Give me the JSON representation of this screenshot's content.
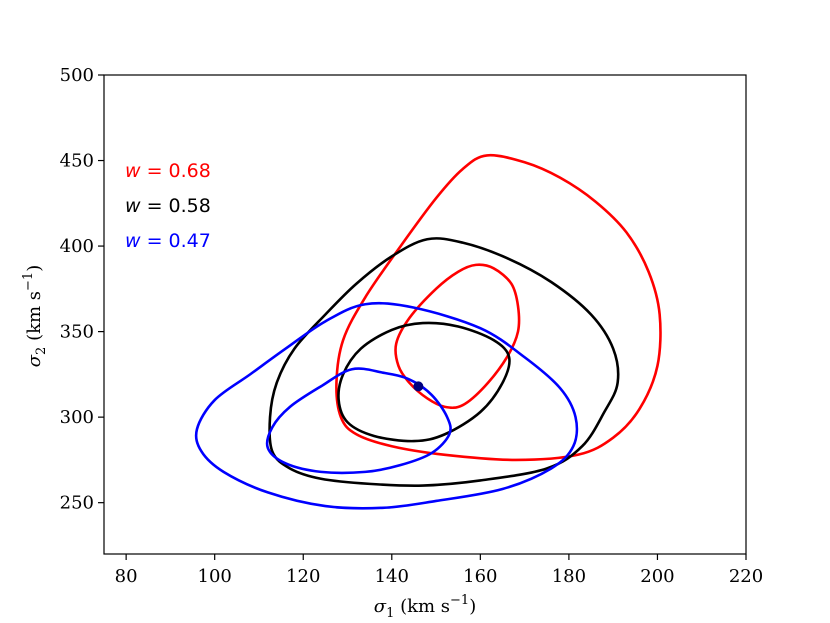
{
  "chart_data": {
    "type": "line",
    "xlabel": {
      "sym": "σ",
      "sub": "1",
      "unit": " (km s",
      "sup": "−1",
      "close": ")"
    },
    "ylabel": {
      "sym": "σ",
      "sub": "2",
      "unit": " (km s",
      "sup": "−1",
      "close": ")"
    },
    "xlim": [
      75,
      220
    ],
    "ylim": [
      220,
      500
    ],
    "xticks": [
      80,
      100,
      120,
      140,
      160,
      180,
      200,
      220
    ],
    "yticks": [
      250,
      300,
      350,
      400,
      450,
      500
    ],
    "grid": false,
    "legend_placement": "top-left",
    "legend": [
      {
        "prefix": "w",
        "text": " = 0.68",
        "color": "#ff0000"
      },
      {
        "prefix": "w",
        "text": " = 0.58",
        "color": "#000000"
      },
      {
        "prefix": "w",
        "text": " = 0.47",
        "color": "#0000ff"
      }
    ],
    "series": [
      {
        "color": "#ff0000",
        "contour": "outer",
        "points": [
          [
            161.5,
            453
          ],
          [
            170,
            449
          ],
          [
            178,
            440
          ],
          [
            186,
            426
          ],
          [
            193,
            408
          ],
          [
            198,
            385
          ],
          [
            200.5,
            360
          ],
          [
            200,
            330
          ],
          [
            196,
            305
          ],
          [
            190,
            288
          ],
          [
            182,
            278
          ],
          [
            168,
            275
          ],
          [
            152,
            278
          ],
          [
            140,
            283
          ],
          [
            132,
            290
          ],
          [
            128.5,
            300
          ],
          [
            127.5,
            320
          ],
          [
            129,
            345
          ],
          [
            134,
            370
          ],
          [
            142,
            400
          ],
          [
            150,
            428
          ],
          [
            156,
            445
          ],
          [
            161.5,
            453
          ]
        ]
      },
      {
        "color": "#ff0000",
        "contour": "inner",
        "points": [
          [
            159,
            389
          ],
          [
            163,
            387
          ],
          [
            167,
            378
          ],
          [
            168.5,
            365
          ],
          [
            168.5,
            350
          ],
          [
            166,
            335
          ],
          [
            161,
            318
          ],
          [
            156,
            307
          ],
          [
            152,
            306
          ],
          [
            148,
            311
          ],
          [
            144,
            320
          ],
          [
            141.5,
            330
          ],
          [
            141,
            343
          ],
          [
            144,
            358
          ],
          [
            150,
            375
          ],
          [
            155,
            385
          ],
          [
            159,
            389
          ]
        ]
      },
      {
        "color": "#000000",
        "contour": "outer",
        "points": [
          [
            148,
            404
          ],
          [
            156,
            402
          ],
          [
            166,
            393
          ],
          [
            176,
            379
          ],
          [
            185,
            360
          ],
          [
            190,
            340
          ],
          [
            191,
            320
          ],
          [
            188,
            303
          ],
          [
            183,
            283
          ],
          [
            175,
            270
          ],
          [
            160,
            263
          ],
          [
            147,
            260
          ],
          [
            135,
            261
          ],
          [
            124,
            264
          ],
          [
            117,
            270
          ],
          [
            113,
            280
          ],
          [
            112.5,
            300
          ],
          [
            114,
            320
          ],
          [
            118,
            340
          ],
          [
            125,
            360
          ],
          [
            132,
            378
          ],
          [
            140,
            394
          ],
          [
            148,
            404
          ]
        ]
      },
      {
        "color": "#000000",
        "contour": "inner",
        "points": [
          [
            147,
            355
          ],
          [
            155,
            353
          ],
          [
            163,
            345
          ],
          [
            166.5,
            335
          ],
          [
            165,
            320
          ],
          [
            160,
            303
          ],
          [
            152,
            290
          ],
          [
            145,
            286
          ],
          [
            136,
            289
          ],
          [
            130,
            297
          ],
          [
            128,
            310
          ],
          [
            129,
            325
          ],
          [
            133,
            340
          ],
          [
            140,
            351
          ],
          [
            147,
            355
          ]
        ]
      },
      {
        "color": "#0000ff",
        "contour": "outer",
        "points": [
          [
            134,
            366
          ],
          [
            145,
            364
          ],
          [
            160,
            352
          ],
          [
            170,
            335
          ],
          [
            178,
            317
          ],
          [
            181.5,
            300
          ],
          [
            181,
            283
          ],
          [
            176,
            270
          ],
          [
            165,
            258
          ],
          [
            150,
            251
          ],
          [
            138,
            247
          ],
          [
            125,
            248
          ],
          [
            112,
            256
          ],
          [
            102,
            268
          ],
          [
            97,
            280
          ],
          [
            96,
            293
          ],
          [
            100,
            310
          ],
          [
            108,
            325
          ],
          [
            116,
            340
          ],
          [
            125,
            356
          ],
          [
            134,
            366
          ]
        ]
      },
      {
        "color": "#0000ff",
        "contour": "inner",
        "points": [
          [
            131,
            328
          ],
          [
            138,
            326
          ],
          [
            144,
            322
          ],
          [
            149,
            313
          ],
          [
            152.5,
            300
          ],
          [
            153,
            290
          ],
          [
            149,
            279
          ],
          [
            142,
            272
          ],
          [
            134,
            268
          ],
          [
            124,
            268
          ],
          [
            116,
            273
          ],
          [
            112,
            282
          ],
          [
            113,
            294
          ],
          [
            117,
            306
          ],
          [
            124,
            318
          ],
          [
            131,
            328
          ]
        ]
      }
    ],
    "points": [
      {
        "x": 146,
        "y": 318,
        "color": "#000080"
      }
    ]
  }
}
